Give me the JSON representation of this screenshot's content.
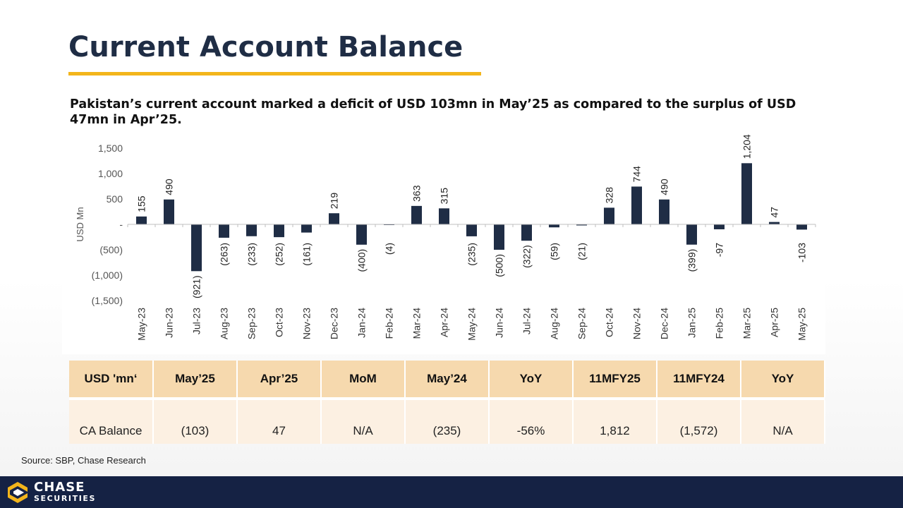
{
  "slide": {
    "title": "Current Account Balance",
    "subtitle": "Pakistan’s current account marked a deficit of USD 103mn in May’25 as compared to the surplus of USD 47mn in Apr’25.",
    "source": "Source: SBP, Chase Research"
  },
  "colors": {
    "bar": "#1f2d45",
    "accent": "#f3b51b",
    "footer": "#152244",
    "table_header": "#f6d9ae",
    "table_row": "#fcf0e2"
  },
  "chart_data": {
    "type": "bar",
    "ylabel": "USD Mn",
    "ylim": [
      -1500,
      1500
    ],
    "yticks": [
      {
        "value": 1500,
        "label": "1,500"
      },
      {
        "value": 1000,
        "label": "1,000"
      },
      {
        "value": 500,
        "label": "500"
      },
      {
        "value": 0,
        "label": "-"
      },
      {
        "value": -500,
        "label": "(500)"
      },
      {
        "value": -1000,
        "label": "(1,000)"
      },
      {
        "value": -1500,
        "label": "(1,500)"
      }
    ],
    "categories": [
      "May-23",
      "Jun-23",
      "Jul-23",
      "Aug-23",
      "Sep-23",
      "Oct-23",
      "Nov-23",
      "Dec-23",
      "Jan-24",
      "Feb-24",
      "Mar-24",
      "Apr-24",
      "May-24",
      "Jun-24",
      "Jul-24",
      "Aug-24",
      "Sep-24",
      "Oct-24",
      "Nov-24",
      "Dec-24",
      "Jan-25",
      "Feb-25",
      "Mar-25",
      "Apr-25",
      "May-25"
    ],
    "values": [
      155,
      490,
      -921,
      -263,
      -233,
      -252,
      -161,
      219,
      -400,
      -4,
      363,
      315,
      -235,
      -500,
      -322,
      -59,
      -21,
      328,
      744,
      490,
      -399,
      -97,
      1204,
      47,
      -103
    ],
    "data_labels": [
      "155",
      "490",
      "(921)",
      "(263)",
      "(233)",
      "(252)",
      "(161)",
      "219",
      "(400)",
      "(4)",
      "363",
      "315",
      "(235)",
      "(500)",
      "(322)",
      "(59)",
      "(21)",
      "328",
      "744",
      "490",
      "(399)",
      "-97",
      "1,204",
      "47",
      "-103"
    ],
    "grid": false,
    "legend": "none"
  },
  "table": {
    "headers": [
      "USD 'mn‘",
      "May’25",
      "Apr’25",
      "MoM",
      "May’24",
      "YoY",
      "11MFY25",
      "11MFY24",
      "YoY"
    ],
    "rows": [
      [
        "CA Balance",
        "(103)",
        "47",
        "N/A",
        "(235)",
        "-56%",
        "1,812",
        "(1,572)",
        "N/A"
      ]
    ]
  },
  "logo": {
    "line1": "CHASE",
    "line2": "SECURITIES"
  }
}
